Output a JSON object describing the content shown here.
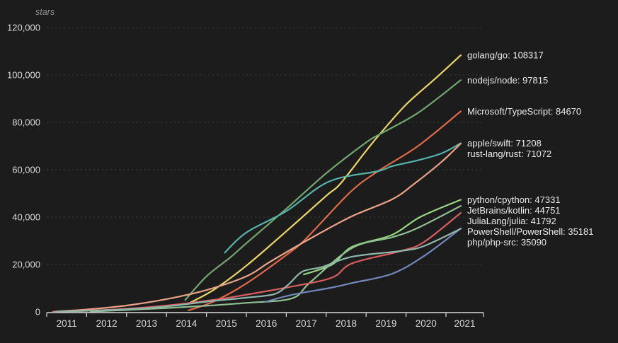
{
  "chart_data": {
    "type": "line",
    "title": "",
    "xlabel": "",
    "ylabel": "stars",
    "background_color": "#1c1c1c",
    "grid": "horizontal-dashed",
    "legend_position": "end-of-line-labels",
    "axis_color": "#dcdcdc",
    "tick_label_color": "#d8d8d8",
    "series_label_color": "#eaeaea",
    "gridline_color": "rgba(255,255,255,0.14)",
    "x_axis": {
      "tick_years": [
        "2011",
        "2012",
        "2013",
        "2014",
        "2015",
        "2016",
        "2017",
        "2018",
        "2019",
        "2020",
        "2021"
      ]
    },
    "y_axis": {
      "tick_values": [
        0,
        20000,
        40000,
        60000,
        80000,
        100000,
        120000
      ],
      "tick_labels": [
        "0",
        "20,000",
        "40,000",
        "60,000",
        "80,000",
        "100,000",
        "120,000"
      ],
      "range": [
        0,
        120000
      ]
    },
    "x_range_years": [
      2011,
      2021.92
    ],
    "series": [
      {
        "name": "golang/go",
        "stars": 108317,
        "label": "golang/go: 108317",
        "color": "#ead567",
        "points": [
          [
            2014.55,
            3500
          ],
          [
            2015.2,
            9500
          ],
          [
            2016,
            19500
          ],
          [
            2017,
            34000
          ],
          [
            2018,
            49000
          ],
          [
            2018.35,
            54000
          ],
          [
            2019.0,
            68000
          ],
          [
            2019.34,
            75000
          ],
          [
            2020,
            87500
          ],
          [
            2020.7,
            98000
          ],
          [
            2021.37,
            108317
          ]
        ]
      },
      {
        "name": "nodejs/node",
        "stars": 97815,
        "label": "nodejs/node: 97815",
        "color": "#72a66e",
        "points": [
          [
            2014.47,
            5000
          ],
          [
            2015.0,
            15000
          ],
          [
            2015.6,
            23000
          ],
          [
            2016,
            29000
          ],
          [
            2017,
            43500
          ],
          [
            2018,
            58500
          ],
          [
            2019,
            71500
          ],
          [
            2019.34,
            75000
          ],
          [
            2020.3,
            84000
          ],
          [
            2021.37,
            97815
          ]
        ]
      },
      {
        "name": "Microsoft/TypeScript",
        "stars": 84670,
        "label": "Microsoft/TypeScript: 84670",
        "color": "#de6a4a",
        "points": [
          [
            2014.55,
            600
          ],
          [
            2015.2,
            4500
          ],
          [
            2016,
            12000
          ],
          [
            2017,
            24000
          ],
          [
            2017.5,
            31000
          ],
          [
            2018.6,
            50500
          ],
          [
            2019.3,
            59400
          ],
          [
            2020.3,
            70000
          ],
          [
            2021.37,
            84670
          ]
        ]
      },
      {
        "name": "apple/swift",
        "stars": 71208,
        "label": "apple/swift: 71208",
        "color": "#54b3a9",
        "points": [
          [
            2015.46,
            25000
          ],
          [
            2016,
            33500
          ],
          [
            2017,
            42500
          ],
          [
            2018.07,
            55000
          ],
          [
            2019.3,
            59400
          ],
          [
            2019.65,
            61500
          ],
          [
            2020.3,
            64000
          ],
          [
            2020.9,
            67000
          ],
          [
            2021.37,
            71208
          ]
        ]
      },
      {
        "name": "rust-lang/rust",
        "stars": 71072,
        "label": "rust-lang/rust: 71072",
        "color": "#eba387",
        "points": [
          [
            2011.25,
            200
          ],
          [
            2012,
            1000
          ],
          [
            2013,
            2700
          ],
          [
            2014,
            5400
          ],
          [
            2015,
            9200
          ],
          [
            2016,
            15000
          ],
          [
            2016.6,
            21200
          ],
          [
            2017.5,
            30000
          ],
          [
            2018.6,
            40000
          ],
          [
            2019.65,
            47500
          ],
          [
            2020.2,
            54000
          ],
          [
            2020.9,
            63500
          ],
          [
            2021.37,
            71072
          ]
        ]
      },
      {
        "name": "python/cpython",
        "stars": 47331,
        "label": "python/cpython: 47331",
        "color": "#95d67f",
        "points": [
          [
            2017.44,
            15800
          ],
          [
            2018.15,
            20000
          ],
          [
            2018.65,
            27500
          ],
          [
            2019.65,
            32500
          ],
          [
            2020.35,
            40000
          ],
          [
            2021.37,
            47331
          ]
        ]
      },
      {
        "name": "JetBrains/kotlin",
        "stars": 44751,
        "label": "JetBrains/kotlin: 44751",
        "color": "#91c193",
        "points": [
          [
            2012.1,
            150
          ],
          [
            2013,
            800
          ],
          [
            2014,
            1600
          ],
          [
            2015,
            2600
          ],
          [
            2016,
            3800
          ],
          [
            2017.14,
            5700
          ],
          [
            2017.6,
            12500
          ],
          [
            2018.65,
            27000
          ],
          [
            2019.65,
            31500
          ],
          [
            2020.3,
            35500
          ],
          [
            2021.37,
            44751
          ]
        ]
      },
      {
        "name": "JuliaLang/julia",
        "stars": 41792,
        "label": "JuliaLang/julia: 41792",
        "color": "#da5e5e",
        "points": [
          [
            2011.15,
            100
          ],
          [
            2012,
            500
          ],
          [
            2013,
            1300
          ],
          [
            2014,
            2700
          ],
          [
            2015,
            4700
          ],
          [
            2015.67,
            6300
          ],
          [
            2017.14,
            10700
          ],
          [
            2018.15,
            14500
          ],
          [
            2018.65,
            20500
          ],
          [
            2019.87,
            25700
          ],
          [
            2020.45,
            29500
          ],
          [
            2021.37,
            41792
          ]
        ]
      },
      {
        "name": "PowerShell/PowerShell",
        "stars": 35181,
        "label": "PowerShell/PowerShell: 35181",
        "color": "#7289bb",
        "points": [
          [
            2016.47,
            4200
          ],
          [
            2017.14,
            7200
          ],
          [
            2018.15,
            10300
          ],
          [
            2018.65,
            12200
          ],
          [
            2019.65,
            16100
          ],
          [
            2020.45,
            23600
          ],
          [
            2021.37,
            35181
          ]
        ]
      },
      {
        "name": "php/php-src",
        "stars": 35090,
        "label": "php/php-src: 35090",
        "color": "#8fb6ac",
        "points": [
          [
            2011.2,
            100
          ],
          [
            2012,
            450
          ],
          [
            2013,
            1100
          ],
          [
            2014,
            2300
          ],
          [
            2015,
            4300
          ],
          [
            2016,
            6000
          ],
          [
            2016.7,
            7500
          ],
          [
            2017.05,
            11500
          ],
          [
            2017.4,
            17000
          ],
          [
            2017.9,
            19000
          ],
          [
            2018.65,
            23300
          ],
          [
            2019.87,
            25700
          ],
          [
            2020.45,
            27800
          ],
          [
            2021.37,
            35090
          ]
        ]
      }
    ]
  }
}
